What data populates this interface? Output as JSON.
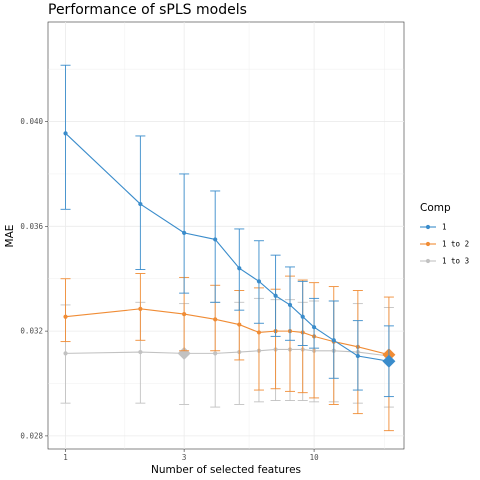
{
  "chart_data": {
    "type": "line",
    "title": "Performance of sPLS models",
    "xlabel": "Number of selected features",
    "ylabel": "MAE",
    "x_scale": "log",
    "x_ticks": [
      1,
      3,
      10
    ],
    "x_tick_labels": [
      "1",
      "3",
      "10"
    ],
    "y_ticks": [
      0.028,
      0.032,
      0.036,
      0.04
    ],
    "y_tick_labels": [
      "0.028",
      "0.032",
      "0.036",
      "0.040"
    ],
    "xlim": [
      0.85,
      23
    ],
    "ylim": [
      0.0275,
      0.0438
    ],
    "grid": true,
    "legend": {
      "title": "Comp",
      "position": "right"
    },
    "x": [
      1,
      2,
      3,
      4,
      5,
      6,
      7,
      8,
      9,
      10,
      12,
      15,
      20
    ],
    "series": [
      {
        "name": "1",
        "color": "#3a8ccb",
        "values": [
          0.03955,
          0.03685,
          0.03575,
          0.0355,
          0.0344,
          0.0339,
          0.03335,
          0.033,
          0.03255,
          0.03215,
          0.03165,
          0.03105,
          0.03085
        ],
        "lower": [
          0.03665,
          0.03435,
          0.03345,
          0.0331,
          0.0328,
          0.0323,
          0.0318,
          0.03165,
          0.03145,
          0.03135,
          0.0302,
          0.02975,
          0.0295
        ],
        "upper": [
          0.04215,
          0.03945,
          0.038,
          0.03735,
          0.0359,
          0.03545,
          0.0349,
          0.03445,
          0.0339,
          0.03325,
          0.03315,
          0.0324,
          0.0322
        ],
        "best_index": 12
      },
      {
        "name": "1 to 2",
        "color": "#f08c35",
        "values": [
          0.03255,
          0.03285,
          0.03265,
          0.03245,
          0.03225,
          0.03195,
          0.032,
          0.032,
          0.03195,
          0.0318,
          0.0316,
          0.0314,
          0.0311
        ],
        "lower": [
          0.0316,
          0.03165,
          0.03125,
          0.03125,
          0.0309,
          0.02975,
          0.0298,
          0.0297,
          0.02965,
          0.02945,
          0.0292,
          0.02885,
          0.0282
        ],
        "upper": [
          0.034,
          0.0342,
          0.03405,
          0.03375,
          0.03355,
          0.03365,
          0.0336,
          0.0341,
          0.03395,
          0.03385,
          0.0337,
          0.03355,
          0.0333
        ],
        "best_index": 12
      },
      {
        "name": "1 to 3",
        "color": "#c2c2c2",
        "values": [
          0.03115,
          0.0312,
          0.03115,
          0.03115,
          0.0312,
          0.03125,
          0.0313,
          0.0313,
          0.0313,
          0.03125,
          0.03125,
          0.0312,
          0.03105
        ],
        "lower": [
          0.02925,
          0.02925,
          0.0292,
          0.0291,
          0.0292,
          0.0293,
          0.02935,
          0.02935,
          0.02935,
          0.0293,
          0.0293,
          0.02925,
          0.0291
        ],
        "upper": [
          0.033,
          0.0331,
          0.03305,
          0.0331,
          0.0331,
          0.03325,
          0.0332,
          0.0332,
          0.0331,
          0.03315,
          0.03315,
          0.03305,
          0.0329
        ],
        "best_index": 2
      }
    ]
  }
}
